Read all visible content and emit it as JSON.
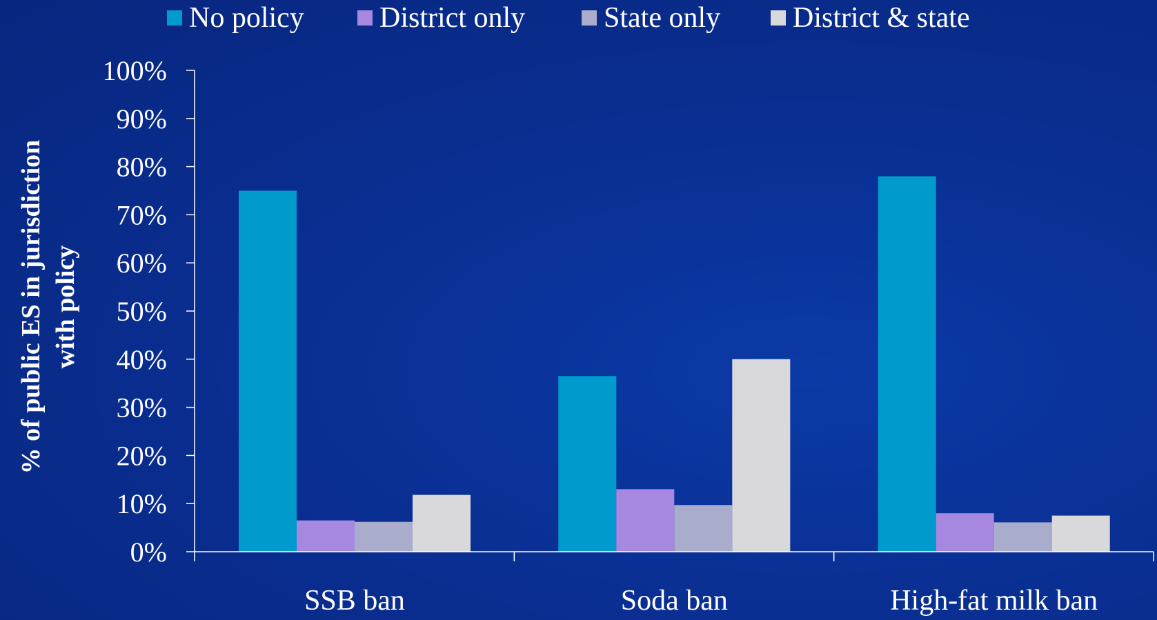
{
  "chart_data": {
    "type": "bar",
    "title": "",
    "xlabel": "",
    "ylabel_line1": "% of public ES in jurisdiction",
    "ylabel_line2": "with policy",
    "ylim": [
      0,
      100
    ],
    "yticks": [
      0,
      10,
      20,
      30,
      40,
      50,
      60,
      70,
      80,
      90,
      100
    ],
    "ytick_labels": [
      "0%",
      "10%",
      "20%",
      "30%",
      "40%",
      "50%",
      "60%",
      "70%",
      "80%",
      "90%",
      "100%"
    ],
    "grid": false,
    "legend_position": "top",
    "categories": [
      "SSB ban",
      "Soda ban",
      "High-fat milk ban"
    ],
    "series": [
      {
        "name": "No policy",
        "color": "#009acd",
        "values": [
          75,
          36.5,
          78
        ]
      },
      {
        "name": "District only",
        "color": "#a688e0",
        "values": [
          6.5,
          13,
          8
        ]
      },
      {
        "name": "State only",
        "color": "#a9adcb",
        "values": [
          6.2,
          9.7,
          6.1
        ]
      },
      {
        "name": "District & state",
        "color": "#d9d9dc",
        "values": [
          11.8,
          40,
          7.5
        ]
      }
    ]
  }
}
